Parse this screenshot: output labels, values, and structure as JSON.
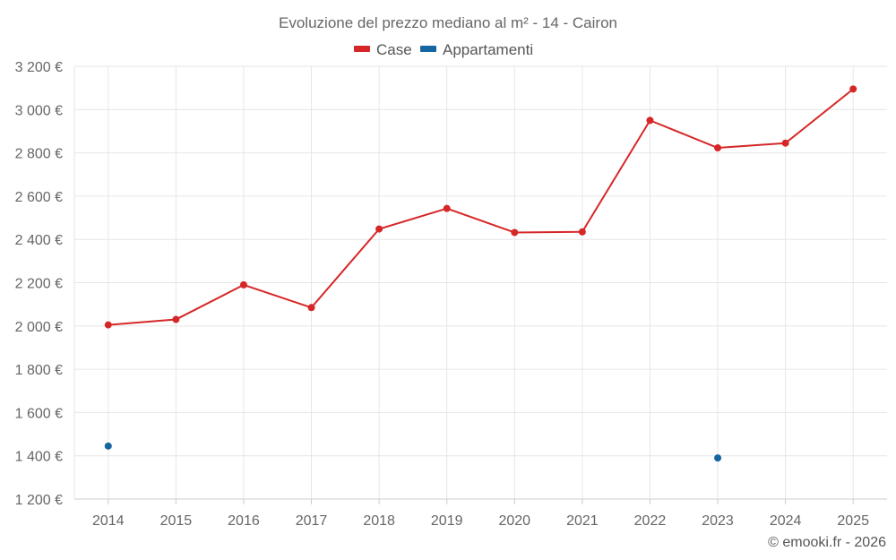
{
  "colors": {
    "case": "#d62728",
    "appartamenti": "#1565a0"
  },
  "chart_data": {
    "type": "line",
    "title": "Evoluzione del prezzo mediano al m² - 14 - Cairon",
    "xlabel": "",
    "ylabel": "",
    "categories": [
      "2014",
      "2015",
      "2016",
      "2017",
      "2018",
      "2019",
      "2020",
      "2021",
      "2022",
      "2023",
      "2024",
      "2025"
    ],
    "ylim": [
      1200,
      3200
    ],
    "yticks": [
      1200,
      1400,
      1600,
      1800,
      2000,
      2200,
      2400,
      2600,
      2800,
      3000,
      3200
    ],
    "ytick_labels": [
      "1 200 €",
      "1 400 €",
      "1 600 €",
      "1 800 €",
      "2 000 €",
      "2 200 €",
      "2 400 €",
      "2 600 €",
      "2 800 €",
      "3 000 €",
      "3 200 €"
    ],
    "legend_position": "top-center",
    "grid": true,
    "series": [
      {
        "name": "Case",
        "color_key": "case",
        "values": [
          2005,
          2030,
          2190,
          2085,
          2448,
          2543,
          2432,
          2435,
          2950,
          2823,
          2845,
          3095
        ]
      },
      {
        "name": "Appartamenti",
        "color_key": "appartamenti",
        "values": [
          1445,
          null,
          null,
          null,
          null,
          null,
          null,
          null,
          null,
          1390,
          null,
          null
        ]
      }
    ]
  },
  "credit": "© emooki.fr - 2026"
}
